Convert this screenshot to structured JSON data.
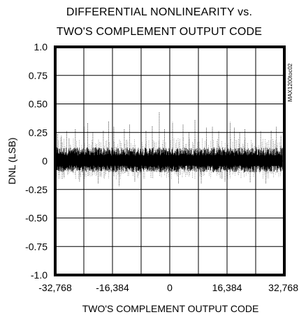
{
  "chart_data": {
    "type": "scatter",
    "title": [
      "DIFFERENTIAL NONLINEARITY vs.",
      "TWO'S COMPLEMENT OUTPUT CODE"
    ],
    "xlabel": "TWO'S COMPLEMENT OUTPUT CODE",
    "ylabel": "DNL (LSB)",
    "plot_id": "MAX1200toc02",
    "xlim": [
      -32768,
      32768
    ],
    "ylim": [
      -1.0,
      1.0
    ],
    "x_ticks": [
      {
        "value": -32768,
        "label": "-32,768"
      },
      {
        "value": -16384,
        "label": "-16,384"
      },
      {
        "value": 0,
        "label": "0"
      },
      {
        "value": 16384,
        "label": "16,384"
      },
      {
        "value": 32768,
        "label": "32,768"
      }
    ],
    "y_ticks": [
      {
        "value": 1.0,
        "label": "1.0"
      },
      {
        "value": 0.75,
        "label": "0.75"
      },
      {
        "value": 0.5,
        "label": "0.50"
      },
      {
        "value": 0.25,
        "label": "0.25"
      },
      {
        "value": 0,
        "label": "0"
      },
      {
        "value": -0.25,
        "label": "-0.25"
      },
      {
        "value": -0.5,
        "label": "-0.50"
      },
      {
        "value": -0.75,
        "label": "-0.75"
      },
      {
        "value": -1.0,
        "label": "-1.0"
      }
    ],
    "grid": true,
    "series_summary": {
      "typical_band": [
        -0.1,
        0.12
      ],
      "max_spike": 0.43,
      "min_spike": -0.23
    },
    "spikes": [
      {
        "x": -32100,
        "y": 0.24
      },
      {
        "x": -31000,
        "y": 0.22
      },
      {
        "x": -30200,
        "y": -0.15
      },
      {
        "x": -29500,
        "y": 0.26
      },
      {
        "x": -28800,
        "y": 0.2
      },
      {
        "x": -27000,
        "y": 0.28
      },
      {
        "x": -25800,
        "y": -0.18
      },
      {
        "x": -24500,
        "y": 0.3
      },
      {
        "x": -23500,
        "y": 0.33
      },
      {
        "x": -22000,
        "y": 0.25
      },
      {
        "x": -20500,
        "y": -0.2
      },
      {
        "x": -19000,
        "y": 0.27
      },
      {
        "x": -17500,
        "y": 0.35
      },
      {
        "x": -16000,
        "y": 0.3
      },
      {
        "x": -14500,
        "y": -0.22
      },
      {
        "x": -13000,
        "y": 0.28
      },
      {
        "x": -11500,
        "y": 0.32
      },
      {
        "x": -10000,
        "y": -0.18
      },
      {
        "x": -8200,
        "y": 0.37
      },
      {
        "x": -6800,
        "y": 0.27
      },
      {
        "x": -5000,
        "y": 0.31
      },
      {
        "x": -3000,
        "y": 0.43
      },
      {
        "x": -1500,
        "y": 0.28
      },
      {
        "x": 800,
        "y": 0.34
      },
      {
        "x": 2500,
        "y": -0.2
      },
      {
        "x": 3800,
        "y": 0.32
      },
      {
        "x": 5500,
        "y": 0.25
      },
      {
        "x": 7200,
        "y": 0.36
      },
      {
        "x": 9000,
        "y": -0.2
      },
      {
        "x": 10500,
        "y": 0.29
      },
      {
        "x": 12200,
        "y": 0.3
      },
      {
        "x": 14000,
        "y": 0.26
      },
      {
        "x": 15800,
        "y": -0.18
      },
      {
        "x": 17300,
        "y": 0.34
      },
      {
        "x": 18500,
        "y": 0.29
      },
      {
        "x": 20000,
        "y": 0.25
      },
      {
        "x": 21500,
        "y": 0.28
      },
      {
        "x": 23000,
        "y": -0.19
      },
      {
        "x": 24600,
        "y": 0.36
      },
      {
        "x": 26000,
        "y": 0.26
      },
      {
        "x": 27500,
        "y": -0.2
      },
      {
        "x": 29000,
        "y": 0.27
      },
      {
        "x": 30500,
        "y": 0.3
      },
      {
        "x": 31800,
        "y": 0.22
      }
    ]
  }
}
